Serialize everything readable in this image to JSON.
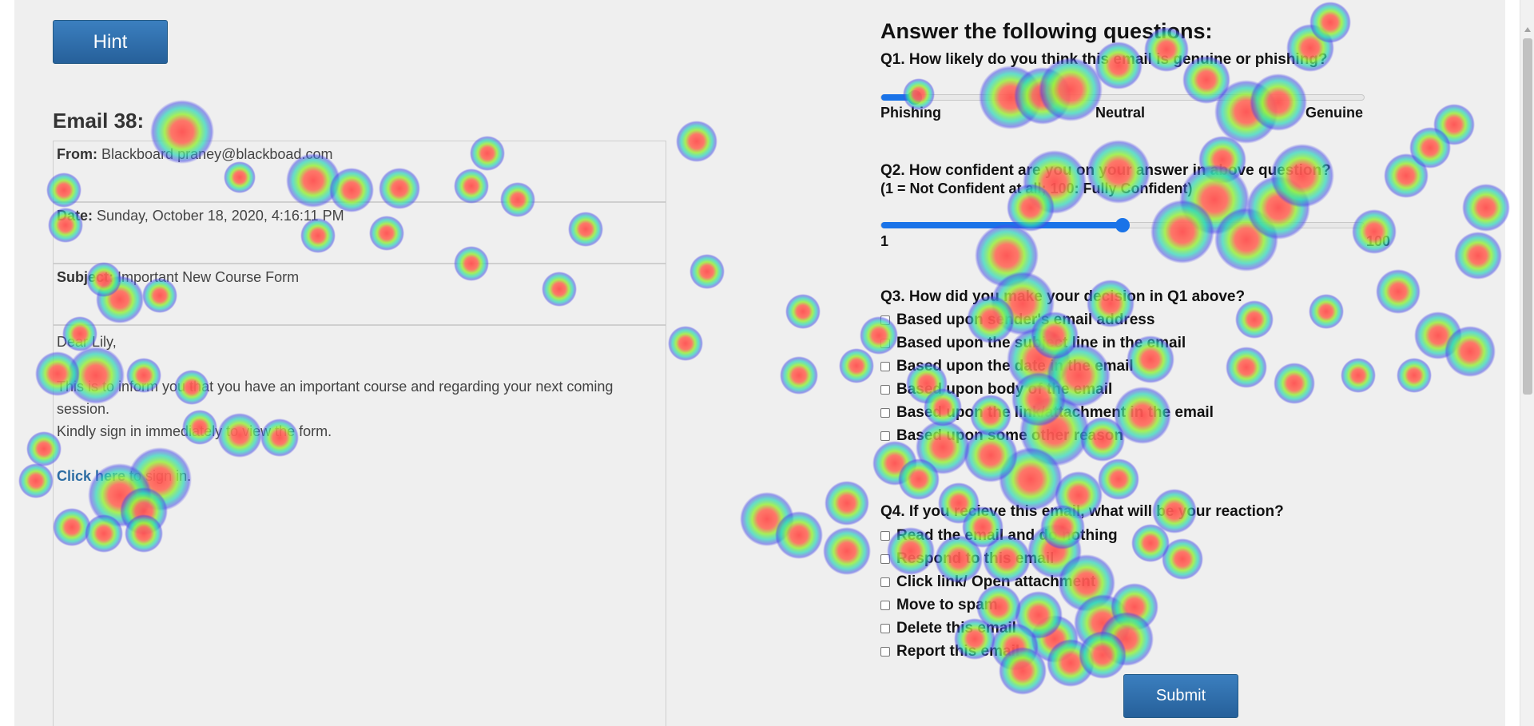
{
  "hint_label": "Hint",
  "email": {
    "title": "Email 38:",
    "from_label": "From:",
    "from_value": "Blackboard praney@blackboad.com",
    "date_label": "Date:",
    "date_value": "Sunday, October 18, 2020, 4:16:11 PM",
    "subject_label": "Subject:",
    "subject_value": "Important New Course Form",
    "greeting": "Dear Lily,",
    "line1": "This is to inform you that you have an important course and regarding your next coming session.",
    "line2": "Kindly sign in immediately to view the form.",
    "link_text": "Click here",
    "link_suffix": " to sign in."
  },
  "questions": {
    "title": "Answer the following questions:",
    "q1": {
      "text": "Q1. How likely do you think this email is genuine or phishing?",
      "labels": [
        "Phishing",
        "Neutral",
        "Genuine"
      ],
      "value_fraction": 0.07
    },
    "q2": {
      "text": "Q2. How confident are you on your answer in above question?",
      "subtext": "(1 = Not Confident at all; 100: Fully Confident)",
      "min_label": "1",
      "max_label": "100",
      "value_fraction": 0.5
    },
    "q3": {
      "text": "Q3. How did you make your decision in Q1 above?",
      "options": [
        "Based upon sender's email address",
        "Based upon the subject line in the email",
        "Based upon the date in the email",
        "Based upon body of the email",
        "Based upon the link/attachment in the email",
        "Based upon some other reason"
      ]
    },
    "q4": {
      "text": "Q4. If you recieve this email, what will be your reaction?",
      "options": [
        "Read the email and do nothing",
        "Respond to this email",
        "Click link/ Open attachment",
        "Move to spam",
        "Delete this email",
        "Report this email"
      ]
    }
  },
  "submit_label": "Submit",
  "colors": {
    "button": "#2f6da8",
    "slider": "#1a73e8",
    "link": "#2d6da3"
  }
}
